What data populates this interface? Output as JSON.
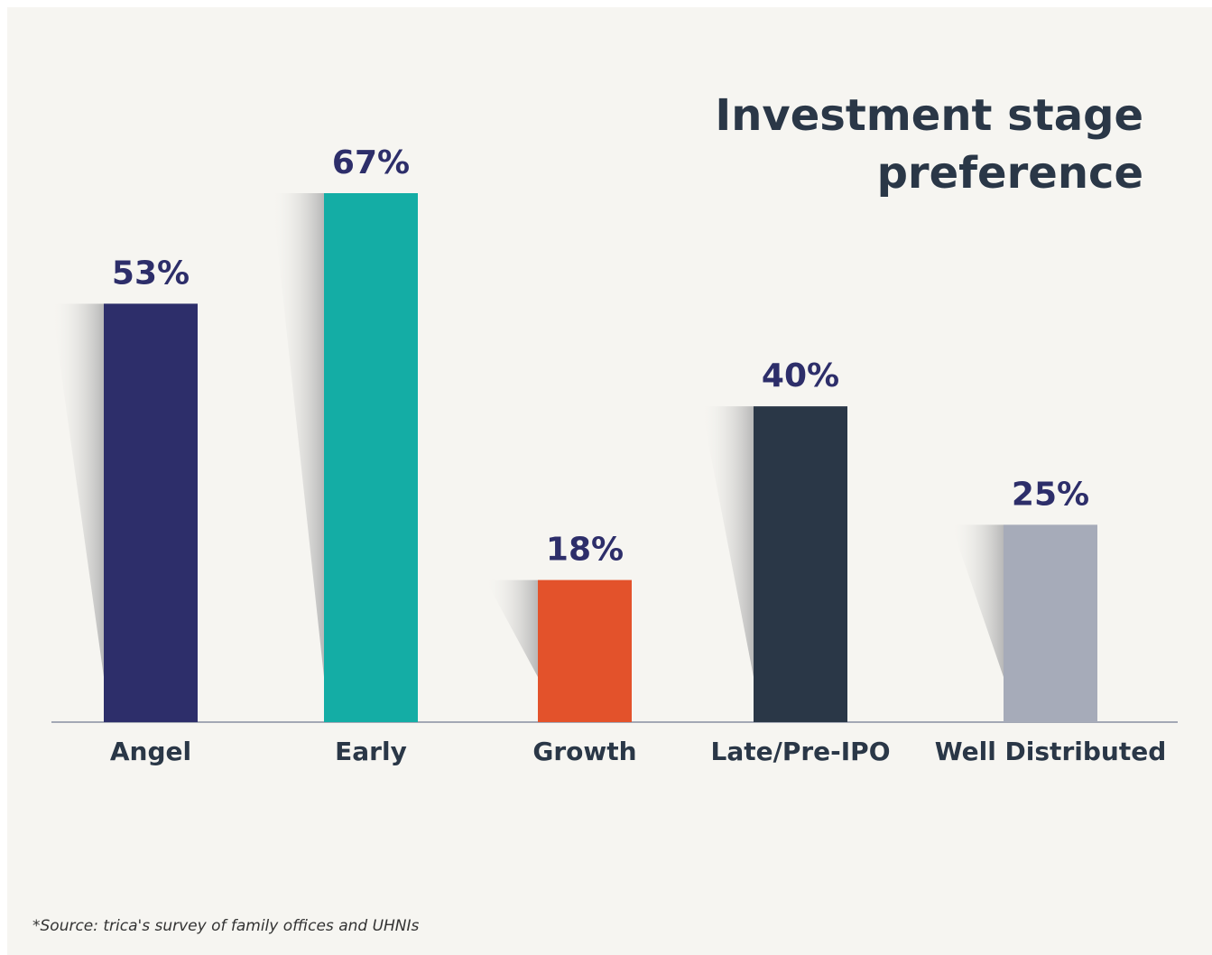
{
  "chart_data": {
    "type": "bar",
    "title": "Investment stage preference",
    "categories": [
      "Angel",
      "Early",
      "Growth",
      "Late/Pre-IPO",
      "Well Distributed"
    ],
    "values": [
      53,
      67,
      18,
      40,
      25
    ],
    "value_labels": [
      "53%",
      "67%",
      "18%",
      "40%",
      "25%"
    ],
    "colors": [
      "#2d2e6a",
      "#14ada5",
      "#e3522b",
      "#2a3747",
      "#a6abb9"
    ],
    "source": "*Source: trica's survey of family offices and UHNIs"
  }
}
